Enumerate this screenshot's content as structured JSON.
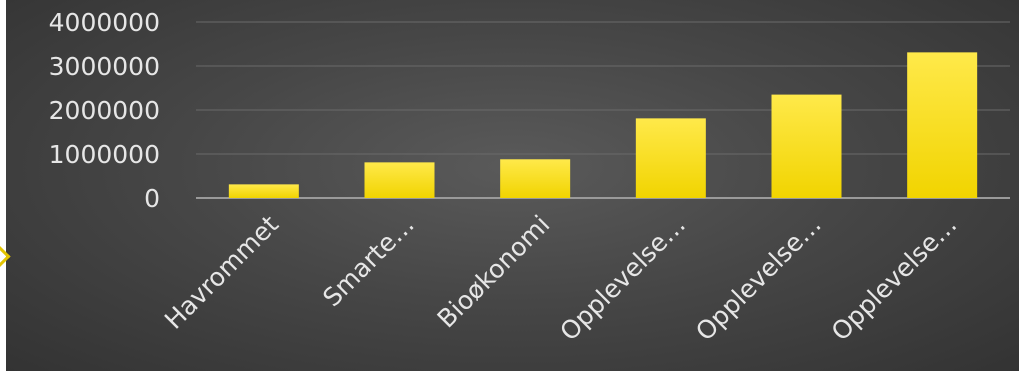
{
  "chart_data": {
    "type": "bar",
    "categories": [
      "Havrommet",
      "Smarte…",
      "Bioøkonomi",
      "Opplevelse…",
      "Opplevelse…",
      "Opplevelse…"
    ],
    "values": [
      310000,
      810000,
      880000,
      1810000,
      2350000,
      3310000
    ],
    "ylim": [
      0,
      4000000
    ],
    "yticks": [
      0,
      1000000,
      2000000,
      3000000,
      4000000
    ],
    "ytick_labels": [
      "0",
      "1000000",
      "2000000",
      "3000000",
      "4000000"
    ],
    "title": "",
    "xlabel": "",
    "ylabel": "",
    "grid": true,
    "legend": "none",
    "colors": {
      "bar_top": "#ffe94a",
      "bar_bottom": "#f1d400",
      "axis_text": "#e6e6e6",
      "gridline": "#6a6a6a",
      "baseline": "#9a9a9a",
      "accent": "#e3c400"
    }
  }
}
